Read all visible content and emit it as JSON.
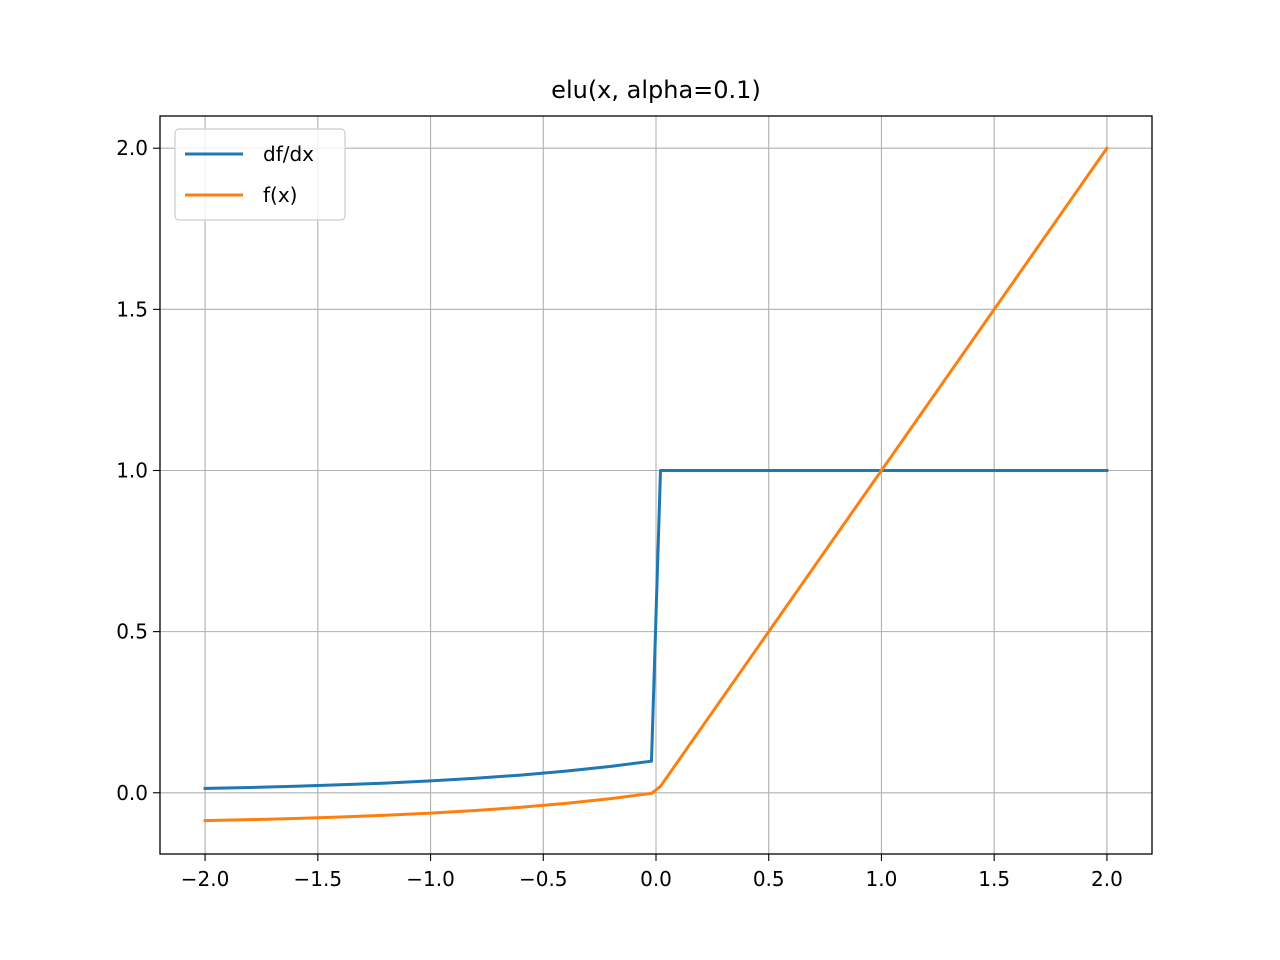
{
  "chart_data": {
    "type": "line",
    "title": "elu(x, alpha=0.1)",
    "xlabel": "",
    "ylabel": "",
    "xlim": [
      -2.2,
      2.2
    ],
    "ylim": [
      -0.19,
      2.1
    ],
    "grid": true,
    "legend_position": "top-left",
    "x_ticks": [
      -2.0,
      -1.5,
      -1.0,
      -0.5,
      0.0,
      0.5,
      1.0,
      1.5,
      2.0
    ],
    "x_tick_labels": [
      "−2.0",
      "−1.5",
      "−1.0",
      "−0.5",
      "0.0",
      "0.5",
      "1.0",
      "1.5",
      "2.0"
    ],
    "y_ticks": [
      0.0,
      0.5,
      1.0,
      1.5,
      2.0
    ],
    "y_tick_labels": [
      "0.0",
      "0.5",
      "1.0",
      "1.5",
      "2.0"
    ],
    "series": [
      {
        "name": "df/dx",
        "color": "#1f77b4",
        "x": [
          -2.0,
          -1.8,
          -1.6,
          -1.4,
          -1.2,
          -1.0,
          -0.8,
          -0.6,
          -0.4,
          -0.2,
          -0.02,
          0.02,
          0.5,
          1.0,
          1.5,
          2.0
        ],
        "y": [
          0.0135,
          0.0165,
          0.0202,
          0.0247,
          0.0301,
          0.0368,
          0.0449,
          0.0549,
          0.067,
          0.0819,
          0.098,
          1.0,
          1.0,
          1.0,
          1.0,
          1.0
        ]
      },
      {
        "name": "f(x)",
        "color": "#ff7f0e",
        "x": [
          -2.0,
          -1.8,
          -1.6,
          -1.4,
          -1.2,
          -1.0,
          -0.8,
          -0.6,
          -0.4,
          -0.2,
          -0.02,
          0.02,
          0.5,
          1.0,
          1.5,
          2.0
        ],
        "y": [
          -0.0865,
          -0.0835,
          -0.0798,
          -0.0753,
          -0.0699,
          -0.0632,
          -0.0551,
          -0.0451,
          -0.033,
          -0.0181,
          -0.002,
          0.02,
          0.5,
          1.0,
          1.5,
          2.0
        ]
      }
    ]
  }
}
